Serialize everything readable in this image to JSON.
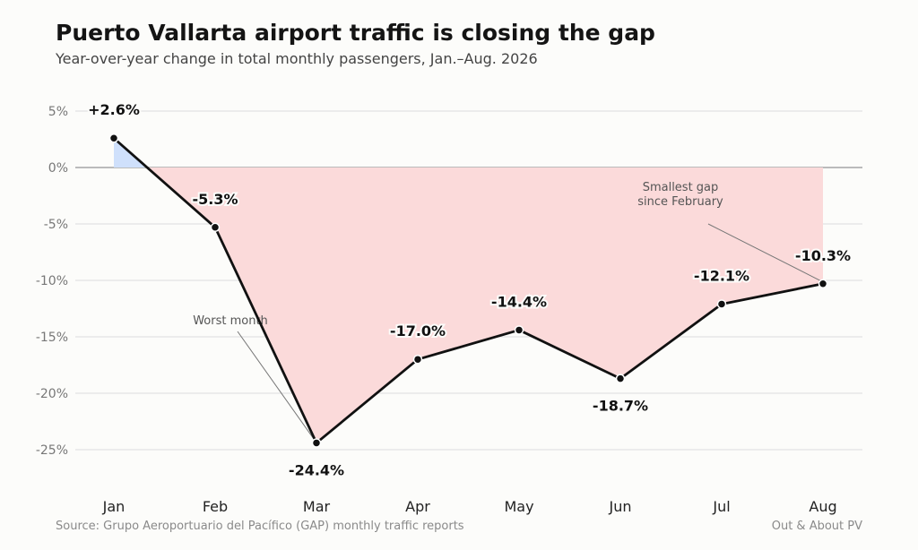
{
  "chart_data": {
    "type": "line",
    "title": "Puerto Vallarta airport traffic is closing the gap",
    "subtitle": "Year-over-year change in total monthly passengers, Jan.–Aug. 2026",
    "categories": [
      "Jan",
      "Feb",
      "Mar",
      "Apr",
      "May",
      "Jun",
      "Jul",
      "Aug"
    ],
    "values": [
      2.6,
      -5.3,
      -24.4,
      -17.0,
      -14.4,
      -18.7,
      -12.1,
      -10.3
    ],
    "data_labels": [
      "+2.6%",
      "-5.3%",
      "-24.4%",
      "-17.0%",
      "-14.4%",
      "-18.7%",
      "-12.1%",
      "-10.3%"
    ],
    "yticks": [
      5,
      0,
      -5,
      -10,
      -15,
      -20,
      -25
    ],
    "ytick_labels": [
      "5%",
      "0%",
      "-5%",
      "-10%",
      "-15%",
      "-20%",
      "-25%"
    ],
    "ylim": [
      -28.5,
      5.7
    ],
    "grid": true,
    "annotations": [
      {
        "lines": [
          "Worst month"
        ],
        "category": "Mar"
      },
      {
        "lines": [
          "Smallest gap",
          "since February"
        ],
        "category": "Aug"
      }
    ],
    "colors": {
      "line": "#111111",
      "positive_fill": "#cfe0fb",
      "negative_fill": "#fbdada",
      "gridline": "#dddddd",
      "zero_line": "#bbbbbb"
    },
    "source": "Source: Grupo Aeroportuario del Pacífico (GAP) monthly traffic reports",
    "credit": "Out & About PV"
  }
}
